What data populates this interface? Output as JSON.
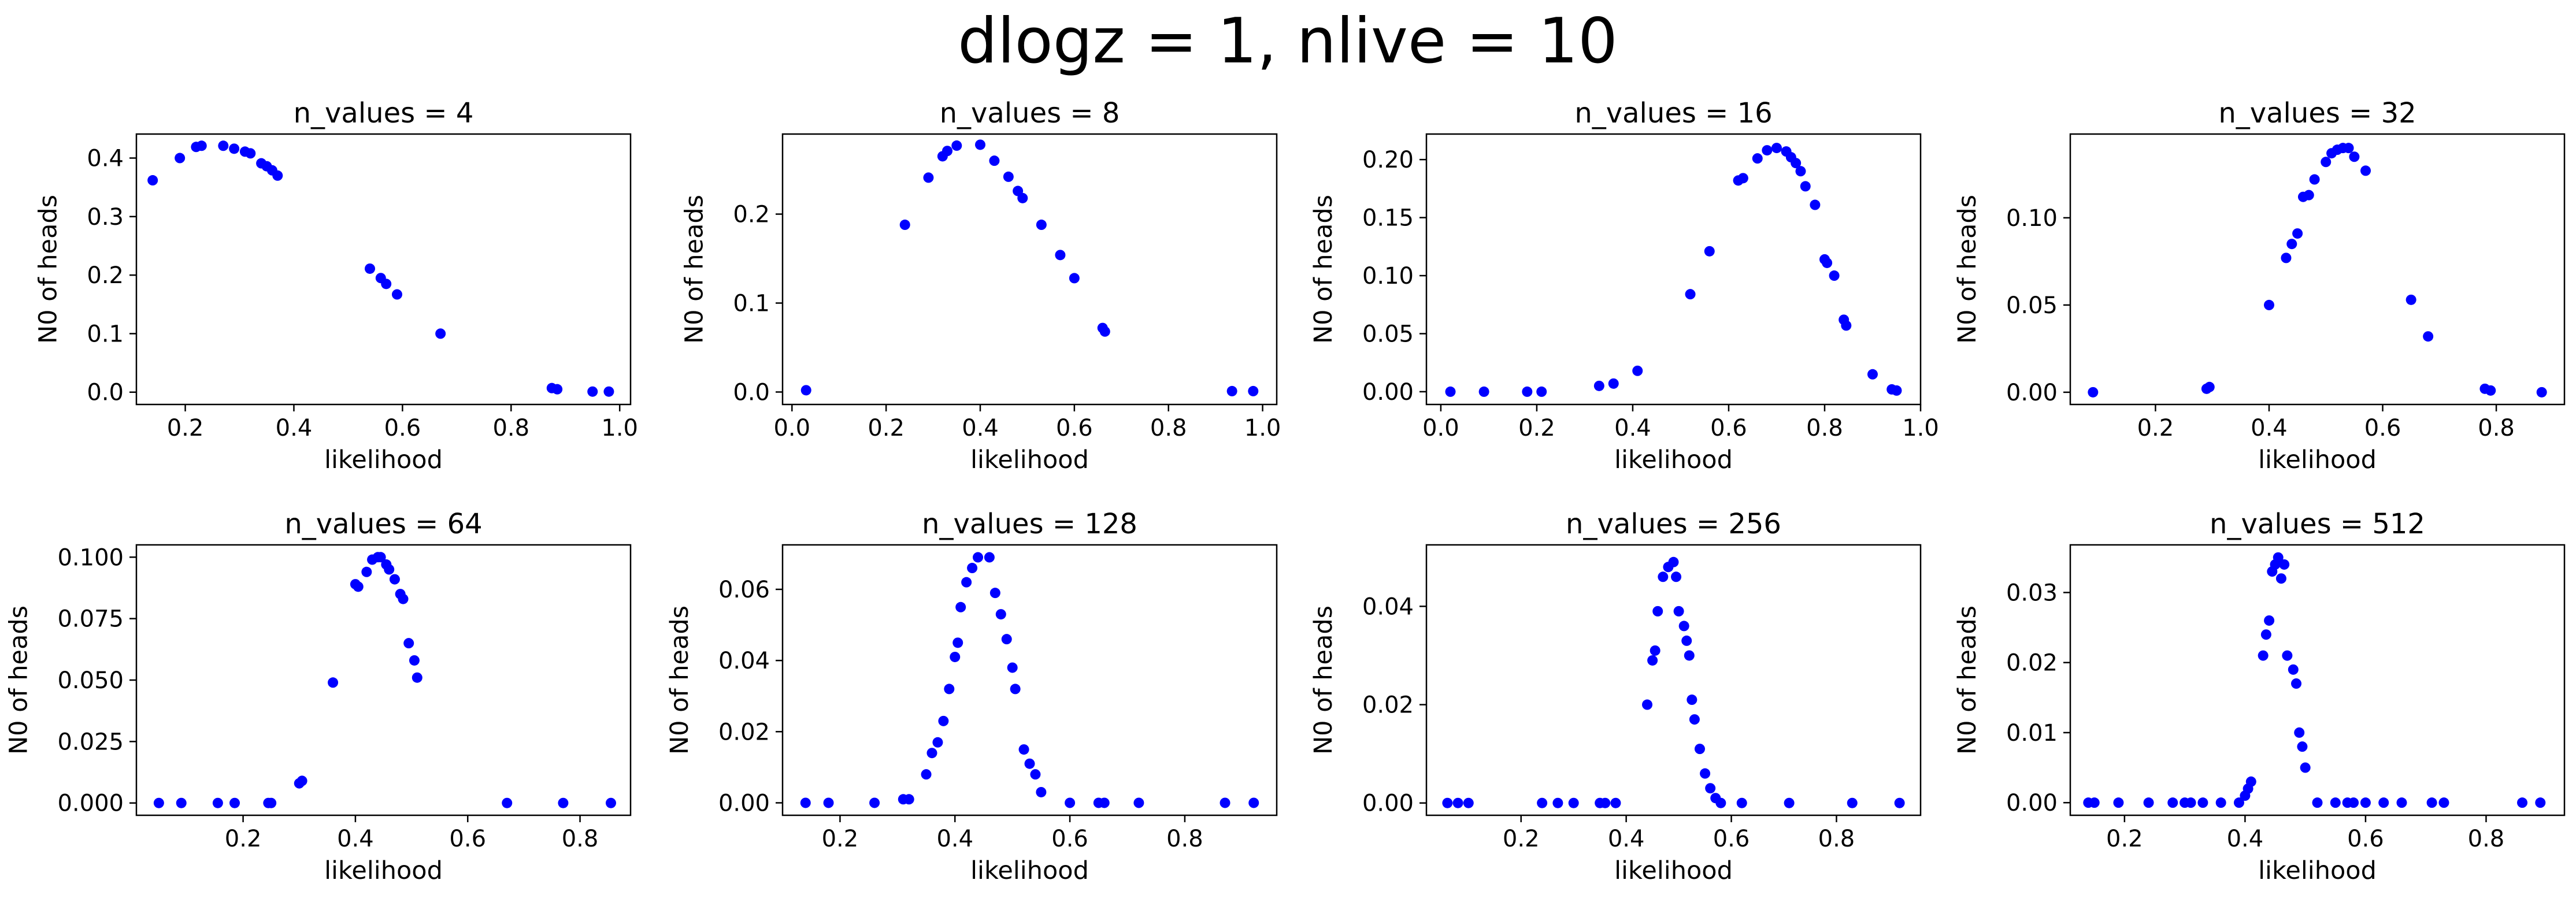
{
  "figure": {
    "title": "dlogz = 1, nlive = 10",
    "marker_color": "#0000ff"
  },
  "chart_data": [
    {
      "type": "scatter",
      "title": "n_values =  4",
      "xlabel": "likelihood",
      "ylabel": "N0 of heads",
      "xlim": [
        0.11,
        1.02
      ],
      "ylim": [
        -0.021,
        0.441
      ],
      "xticks": [
        0.2,
        0.4,
        0.6,
        0.8,
        1.0
      ],
      "xtick_labels": [
        "0.2",
        "0.4",
        "0.6",
        "0.8",
        "1.0"
      ],
      "yticks": [
        0.0,
        0.1,
        0.2,
        0.3,
        0.4
      ],
      "ytick_labels": [
        "0.0",
        "0.1",
        "0.2",
        "0.3",
        "0.4"
      ],
      "points": [
        [
          0.14,
          0.362
        ],
        [
          0.19,
          0.4
        ],
        [
          0.22,
          0.419
        ],
        [
          0.23,
          0.421
        ],
        [
          0.27,
          0.421
        ],
        [
          0.29,
          0.416
        ],
        [
          0.31,
          0.411
        ],
        [
          0.32,
          0.408
        ],
        [
          0.34,
          0.391
        ],
        [
          0.35,
          0.386
        ],
        [
          0.36,
          0.379
        ],
        [
          0.37,
          0.37
        ],
        [
          0.54,
          0.211
        ],
        [
          0.56,
          0.195
        ],
        [
          0.57,
          0.185
        ],
        [
          0.59,
          0.167
        ],
        [
          0.67,
          0.1
        ],
        [
          0.875,
          0.007
        ],
        [
          0.885,
          0.005
        ],
        [
          0.95,
          0.001
        ],
        [
          0.98,
          0.001
        ]
      ]
    },
    {
      "type": "scatter",
      "title": "n_values =  8",
      "xlabel": "likelihood",
      "ylabel": "N0 of heads",
      "xlim": [
        -0.02,
        1.03
      ],
      "ylim": [
        -0.014,
        0.29
      ],
      "xticks": [
        0.0,
        0.2,
        0.4,
        0.6,
        0.8,
        1.0
      ],
      "xtick_labels": [
        "0.0",
        "0.2",
        "0.4",
        "0.6",
        "0.8",
        "1.0"
      ],
      "yticks": [
        0.0,
        0.1,
        0.2
      ],
      "ytick_labels": [
        "0.0",
        "0.1",
        "0.2"
      ],
      "points": [
        [
          0.03,
          0.002
        ],
        [
          0.24,
          0.188
        ],
        [
          0.29,
          0.241
        ],
        [
          0.32,
          0.265
        ],
        [
          0.33,
          0.271
        ],
        [
          0.35,
          0.277
        ],
        [
          0.4,
          0.278
        ],
        [
          0.43,
          0.26
        ],
        [
          0.46,
          0.242
        ],
        [
          0.48,
          0.226
        ],
        [
          0.49,
          0.218
        ],
        [
          0.53,
          0.188
        ],
        [
          0.57,
          0.154
        ],
        [
          0.6,
          0.128
        ],
        [
          0.66,
          0.072
        ],
        [
          0.665,
          0.068
        ],
        [
          0.935,
          0.001
        ],
        [
          0.98,
          0.001
        ]
      ]
    },
    {
      "type": "scatter",
      "title": "n_values =  16",
      "xlabel": "likelihood",
      "ylabel": "N0 of heads",
      "xlim": [
        -0.03,
        1.0
      ],
      "ylim": [
        -0.011,
        0.222
      ],
      "xticks": [
        0.0,
        0.2,
        0.4,
        0.6,
        0.8,
        1.0
      ],
      "xtick_labels": [
        "0.0",
        "0.2",
        "0.4",
        "0.6",
        "0.8",
        "1.0"
      ],
      "yticks": [
        0.0,
        0.05,
        0.1,
        0.15,
        0.2
      ],
      "ytick_labels": [
        "0.00",
        "0.05",
        "0.10",
        "0.15",
        "0.20"
      ],
      "points": [
        [
          0.02,
          0.0
        ],
        [
          0.09,
          0.0
        ],
        [
          0.18,
          0.0
        ],
        [
          0.21,
          0.0
        ],
        [
          0.33,
          0.005
        ],
        [
          0.36,
          0.007
        ],
        [
          0.41,
          0.018
        ],
        [
          0.52,
          0.084
        ],
        [
          0.56,
          0.121
        ],
        [
          0.62,
          0.182
        ],
        [
          0.63,
          0.184
        ],
        [
          0.66,
          0.201
        ],
        [
          0.68,
          0.208
        ],
        [
          0.7,
          0.21
        ],
        [
          0.72,
          0.207
        ],
        [
          0.73,
          0.202
        ],
        [
          0.74,
          0.197
        ],
        [
          0.75,
          0.19
        ],
        [
          0.76,
          0.177
        ],
        [
          0.78,
          0.161
        ],
        [
          0.8,
          0.114
        ],
        [
          0.805,
          0.111
        ],
        [
          0.82,
          0.1
        ],
        [
          0.84,
          0.062
        ],
        [
          0.845,
          0.057
        ],
        [
          0.9,
          0.015
        ],
        [
          0.94,
          0.002
        ],
        [
          0.95,
          0.001
        ]
      ]
    },
    {
      "type": "scatter",
      "title": "n_values =  32",
      "xlabel": "likelihood",
      "ylabel": "N0 of heads",
      "xlim": [
        0.05,
        0.92
      ],
      "ylim": [
        -0.007,
        0.148
      ],
      "xticks": [
        0.2,
        0.4,
        0.6,
        0.8
      ],
      "xtick_labels": [
        "0.2",
        "0.4",
        "0.6",
        "0.8"
      ],
      "yticks": [
        0.0,
        0.05,
        0.1
      ],
      "ytick_labels": [
        "0.00",
        "0.05",
        "0.10"
      ],
      "points": [
        [
          0.09,
          0.0
        ],
        [
          0.29,
          0.002
        ],
        [
          0.295,
          0.003
        ],
        [
          0.4,
          0.05
        ],
        [
          0.43,
          0.077
        ],
        [
          0.44,
          0.085
        ],
        [
          0.45,
          0.091
        ],
        [
          0.46,
          0.112
        ],
        [
          0.47,
          0.113
        ],
        [
          0.48,
          0.122
        ],
        [
          0.5,
          0.132
        ],
        [
          0.51,
          0.137
        ],
        [
          0.52,
          0.139
        ],
        [
          0.53,
          0.14
        ],
        [
          0.54,
          0.14
        ],
        [
          0.55,
          0.135
        ],
        [
          0.57,
          0.127
        ],
        [
          0.65,
          0.053
        ],
        [
          0.68,
          0.032
        ],
        [
          0.78,
          0.002
        ],
        [
          0.79,
          0.001
        ],
        [
          0.88,
          0.0
        ]
      ]
    },
    {
      "type": "scatter",
      "title": "n_values =  64",
      "xlabel": "likelihood",
      "ylabel": "N0 of heads",
      "xlim": [
        0.01,
        0.89
      ],
      "ylim": [
        -0.005,
        0.105
      ],
      "xticks": [
        0.2,
        0.4,
        0.6,
        0.8
      ],
      "xtick_labels": [
        "0.2",
        "0.4",
        "0.6",
        "0.8"
      ],
      "yticks": [
        0.0,
        0.025,
        0.05,
        0.075,
        0.1
      ],
      "ytick_labels": [
        "0.000",
        "0.025",
        "0.050",
        "0.075",
        "0.100"
      ],
      "points": [
        [
          0.05,
          0.0
        ],
        [
          0.09,
          0.0
        ],
        [
          0.155,
          0.0
        ],
        [
          0.185,
          0.0
        ],
        [
          0.245,
          0.0
        ],
        [
          0.25,
          0.0
        ],
        [
          0.3,
          0.008
        ],
        [
          0.305,
          0.009
        ],
        [
          0.36,
          0.049
        ],
        [
          0.4,
          0.089
        ],
        [
          0.405,
          0.088
        ],
        [
          0.42,
          0.094
        ],
        [
          0.43,
          0.099
        ],
        [
          0.44,
          0.1
        ],
        [
          0.445,
          0.1
        ],
        [
          0.455,
          0.097
        ],
        [
          0.46,
          0.095
        ],
        [
          0.47,
          0.091
        ],
        [
          0.48,
          0.085
        ],
        [
          0.485,
          0.083
        ],
        [
          0.495,
          0.065
        ],
        [
          0.505,
          0.058
        ],
        [
          0.51,
          0.051
        ],
        [
          0.67,
          0.0
        ],
        [
          0.77,
          0.0
        ],
        [
          0.855,
          0.0
        ]
      ]
    },
    {
      "type": "scatter",
      "title": "n_values =  128",
      "xlabel": "likelihood",
      "ylabel": "N0 of heads",
      "xlim": [
        0.1,
        0.96
      ],
      "ylim": [
        -0.0035,
        0.0725
      ],
      "xticks": [
        0.2,
        0.4,
        0.6,
        0.8
      ],
      "xtick_labels": [
        "0.2",
        "0.4",
        "0.6",
        "0.8"
      ],
      "yticks": [
        0.0,
        0.02,
        0.04,
        0.06
      ],
      "ytick_labels": [
        "0.00",
        "0.02",
        "0.04",
        "0.06"
      ],
      "points": [
        [
          0.14,
          0.0
        ],
        [
          0.18,
          0.0
        ],
        [
          0.26,
          0.0
        ],
        [
          0.31,
          0.001
        ],
        [
          0.32,
          0.001
        ],
        [
          0.35,
          0.008
        ],
        [
          0.36,
          0.014
        ],
        [
          0.37,
          0.017
        ],
        [
          0.38,
          0.023
        ],
        [
          0.39,
          0.032
        ],
        [
          0.4,
          0.041
        ],
        [
          0.405,
          0.045
        ],
        [
          0.41,
          0.055
        ],
        [
          0.42,
          0.062
        ],
        [
          0.43,
          0.066
        ],
        [
          0.44,
          0.069
        ],
        [
          0.46,
          0.069
        ],
        [
          0.47,
          0.059
        ],
        [
          0.48,
          0.053
        ],
        [
          0.49,
          0.046
        ],
        [
          0.5,
          0.038
        ],
        [
          0.505,
          0.032
        ],
        [
          0.52,
          0.015
        ],
        [
          0.53,
          0.011
        ],
        [
          0.54,
          0.008
        ],
        [
          0.55,
          0.003
        ],
        [
          0.6,
          0.0
        ],
        [
          0.65,
          0.0
        ],
        [
          0.66,
          0.0
        ],
        [
          0.72,
          0.0
        ],
        [
          0.87,
          0.0
        ],
        [
          0.92,
          0.0
        ]
      ]
    },
    {
      "type": "scatter",
      "title": "n_values =  256",
      "xlabel": "likelihood",
      "ylabel": "N0 of heads",
      "xlim": [
        0.02,
        0.96
      ],
      "ylim": [
        -0.0025,
        0.0525
      ],
      "xticks": [
        0.2,
        0.4,
        0.6,
        0.8
      ],
      "xtick_labels": [
        "0.2",
        "0.4",
        "0.6",
        "0.8"
      ],
      "yticks": [
        0.0,
        0.02,
        0.04
      ],
      "ytick_labels": [
        "0.00",
        "0.02",
        "0.04"
      ],
      "points": [
        [
          0.06,
          0.0
        ],
        [
          0.08,
          0.0
        ],
        [
          0.1,
          0.0
        ],
        [
          0.24,
          0.0
        ],
        [
          0.27,
          0.0
        ],
        [
          0.3,
          0.0
        ],
        [
          0.35,
          0.0
        ],
        [
          0.36,
          0.0
        ],
        [
          0.38,
          0.0
        ],
        [
          0.44,
          0.02
        ],
        [
          0.45,
          0.029
        ],
        [
          0.455,
          0.031
        ],
        [
          0.46,
          0.039
        ],
        [
          0.47,
          0.046
        ],
        [
          0.48,
          0.048
        ],
        [
          0.49,
          0.049
        ],
        [
          0.495,
          0.046
        ],
        [
          0.5,
          0.039
        ],
        [
          0.51,
          0.036
        ],
        [
          0.515,
          0.033
        ],
        [
          0.52,
          0.03
        ],
        [
          0.525,
          0.021
        ],
        [
          0.53,
          0.017
        ],
        [
          0.54,
          0.011
        ],
        [
          0.55,
          0.006
        ],
        [
          0.56,
          0.003
        ],
        [
          0.57,
          0.001
        ],
        [
          0.58,
          0.0
        ],
        [
          0.62,
          0.0
        ],
        [
          0.71,
          0.0
        ],
        [
          0.83,
          0.0
        ],
        [
          0.92,
          0.0
        ]
      ]
    },
    {
      "type": "scatter",
      "title": "n_values =  512",
      "xlabel": "likelihood",
      "ylabel": "N0 of heads",
      "xlim": [
        0.11,
        0.93
      ],
      "ylim": [
        -0.0018,
        0.0368
      ],
      "xticks": [
        0.2,
        0.4,
        0.6,
        0.8
      ],
      "xtick_labels": [
        "0.2",
        "0.4",
        "0.6",
        "0.8"
      ],
      "yticks": [
        0.0,
        0.01,
        0.02,
        0.03
      ],
      "ytick_labels": [
        "0.00",
        "0.01",
        "0.02",
        "0.03"
      ],
      "points": [
        [
          0.14,
          0.0
        ],
        [
          0.15,
          0.0
        ],
        [
          0.19,
          0.0
        ],
        [
          0.24,
          0.0
        ],
        [
          0.28,
          0.0
        ],
        [
          0.3,
          0.0
        ],
        [
          0.31,
          0.0
        ],
        [
          0.33,
          0.0
        ],
        [
          0.36,
          0.0
        ],
        [
          0.39,
          0.0
        ],
        [
          0.4,
          0.001
        ],
        [
          0.405,
          0.002
        ],
        [
          0.41,
          0.003
        ],
        [
          0.43,
          0.021
        ],
        [
          0.435,
          0.024
        ],
        [
          0.44,
          0.026
        ],
        [
          0.445,
          0.033
        ],
        [
          0.45,
          0.034
        ],
        [
          0.455,
          0.035
        ],
        [
          0.46,
          0.032
        ],
        [
          0.465,
          0.034
        ],
        [
          0.47,
          0.021
        ],
        [
          0.48,
          0.019
        ],
        [
          0.485,
          0.017
        ],
        [
          0.49,
          0.01
        ],
        [
          0.495,
          0.008
        ],
        [
          0.5,
          0.005
        ],
        [
          0.52,
          0.0
        ],
        [
          0.55,
          0.0
        ],
        [
          0.57,
          0.0
        ],
        [
          0.58,
          0.0
        ],
        [
          0.6,
          0.0
        ],
        [
          0.63,
          0.0
        ],
        [
          0.66,
          0.0
        ],
        [
          0.71,
          0.0
        ],
        [
          0.73,
          0.0
        ],
        [
          0.86,
          0.0
        ],
        [
          0.89,
          0.0
        ]
      ]
    }
  ]
}
